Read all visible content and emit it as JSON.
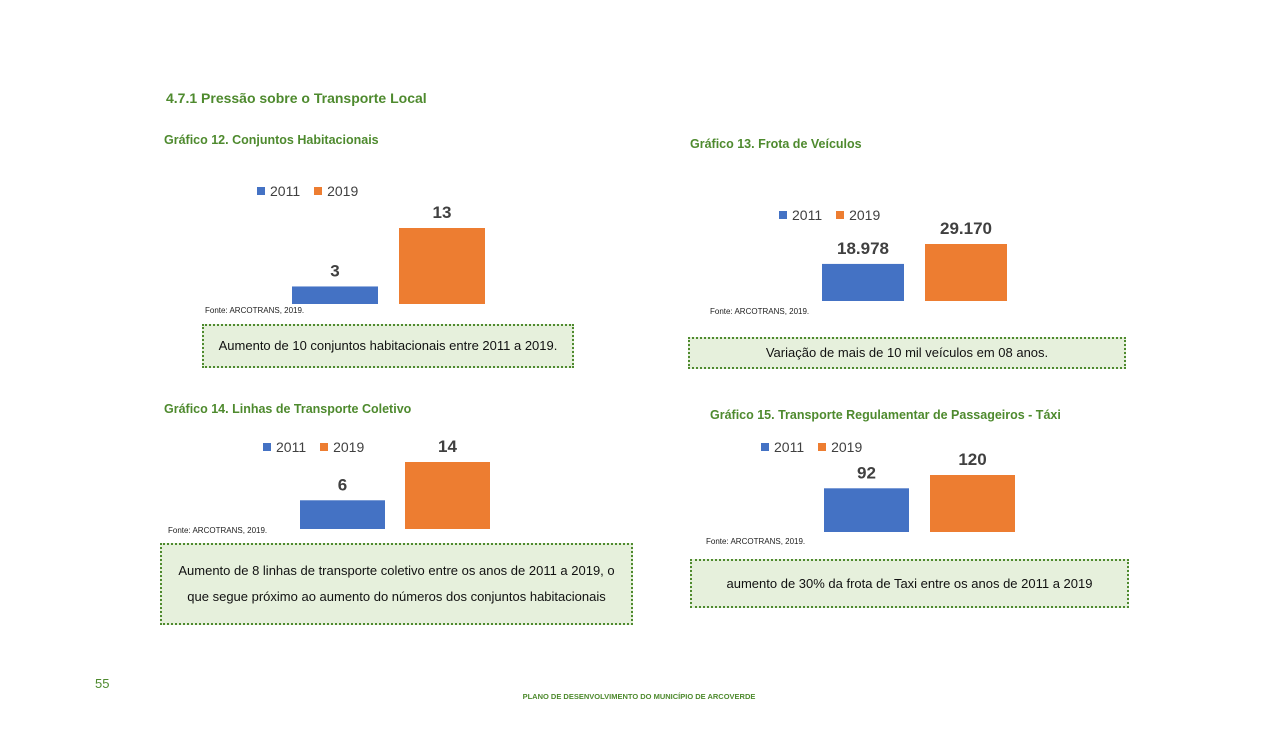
{
  "section_title": "4.7.1 Pressão sobre o Transporte Local",
  "colors": {
    "series_2011": "#4472c4",
    "series_2019": "#ed7d31",
    "accent_green": "#4e8a2e",
    "note_bg": "#e6f0dc"
  },
  "legend": {
    "label_2011": "2011",
    "label_2019": "2019"
  },
  "charts": [
    {
      "title": "Gráfico 12. Conjuntos Habitacionais",
      "source": "Fonte: ARCOTRANS, 2019.",
      "note": "Aumento de 10 conjuntos habitacionais entre 2011 a 2019."
    },
    {
      "title": "Gráfico 13. Frota de Veículos",
      "source": "Fonte: ARCOTRANS, 2019.",
      "note": "Variação de mais de 10 mil veículos em 08 anos."
    },
    {
      "title": "Gráfico 14. Linhas de Transporte Coletivo",
      "source": "Fonte: ARCOTRANS, 2019.",
      "note": "Aumento de 8 linhas de transporte coletivo entre os anos de 2011 a 2019, o que segue próximo ao aumento do números dos conjuntos habitacionais"
    },
    {
      "title": "Gráfico 15. Transporte Regulamentar de Passageiros - Táxi",
      "source": "Fonte: ARCOTRANS, 2019.",
      "note": "aumento de 30% da frota de Taxi entre os anos de 2011 a 2019"
    }
  ],
  "chart_data": [
    {
      "type": "bar",
      "title": "Gráfico 12. Conjuntos Habitacionais",
      "categories": [
        "2011",
        "2019"
      ],
      "values": [
        3,
        13
      ],
      "value_labels": [
        "3",
        "13"
      ],
      "ylim": [
        0,
        13
      ],
      "grid": false,
      "legend": "top"
    },
    {
      "type": "bar",
      "title": "Gráfico 13. Frota de Veículos",
      "categories": [
        "2011",
        "2019"
      ],
      "values": [
        18978,
        29170
      ],
      "value_labels": [
        "18.978",
        "29.170"
      ],
      "ylim": [
        0,
        29170
      ],
      "grid": false,
      "legend": "top"
    },
    {
      "type": "bar",
      "title": "Gráfico 14. Linhas de Transporte Coletivo",
      "categories": [
        "2011",
        "2019"
      ],
      "values": [
        6,
        14
      ],
      "value_labels": [
        "6",
        "14"
      ],
      "ylim": [
        0,
        14
      ],
      "grid": false,
      "legend": "top"
    },
    {
      "type": "bar",
      "title": "Gráfico 15. Transporte Regulamentar de Passageiros - Táxi",
      "categories": [
        "2011",
        "2019"
      ],
      "values": [
        92,
        120
      ],
      "value_labels": [
        "92",
        "120"
      ],
      "ylim": [
        0,
        120
      ],
      "grid": false,
      "legend": "top"
    }
  ],
  "page_number": "55",
  "footer": "PLANO DE DESENVOLVIMENTO DO MUNICÍPIO DE ARCOVERDE"
}
